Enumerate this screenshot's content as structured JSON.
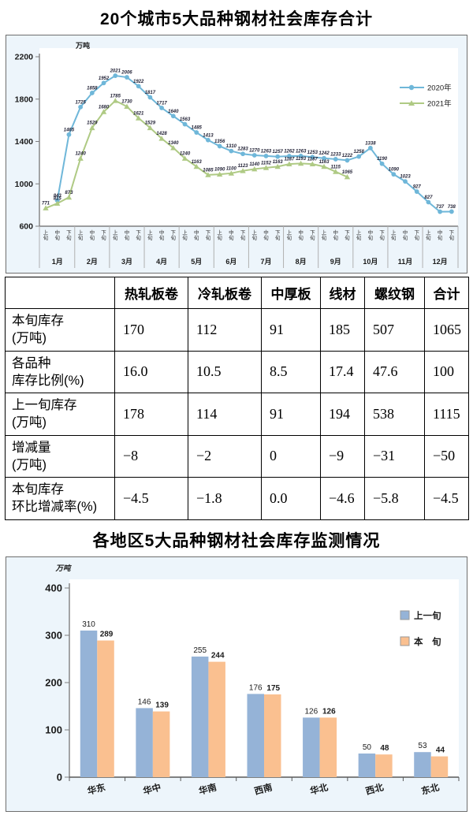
{
  "accent_colors": {
    "line_2020": "#6fb7d9",
    "line_2021": "#afca84",
    "bar_prev": "#95b3d7",
    "bar_curr": "#fac090",
    "chart_bg": "#edf5fb",
    "plot_bg": "#ffffff"
  },
  "chart_data": [
    {
      "type": "line",
      "title": "20个城市5大品种钢材社会库存合计",
      "unit": "万吨",
      "ylim": [
        600,
        2200
      ],
      "y_ticks": [
        600,
        1000,
        1400,
        1800,
        2200
      ],
      "months": [
        "1月",
        "2月",
        "3月",
        "4月",
        "5月",
        "6月",
        "7月",
        "8月",
        "9月",
        "10月",
        "11月",
        "12月"
      ],
      "periods": [
        "上旬",
        "中旬",
        "下旬"
      ],
      "grid": false,
      "legend_position": "right-inside",
      "series": [
        {
          "name": "2020年",
          "marker": "circle",
          "color": "#6fb7d9",
          "values": [
            null,
            843,
            1465,
            1725,
            1858,
            1952,
            2021,
            2006,
            1922,
            1817,
            1717,
            1640,
            1563,
            1485,
            1413,
            1356,
            1310,
            1283,
            1270,
            1263,
            1257,
            1262,
            1263,
            1253,
            1242,
            1233,
            1222,
            1258,
            1338,
            1190,
            1090,
            1023,
            927,
            827,
            737,
            738
          ]
        },
        {
          "name": "2021年",
          "marker": "triangle",
          "color": "#afca84",
          "values": [
            771,
            815,
            873,
            1240,
            1529,
            1680,
            1785,
            1730,
            1621,
            1529,
            1428,
            1340,
            1240,
            1163,
            1085,
            1090,
            1100,
            1123,
            1140,
            1152,
            1163,
            1187,
            1193,
            1187,
            1163,
            1115,
            1065,
            null,
            null,
            null,
            null,
            null,
            null,
            null,
            null,
            null
          ]
        }
      ]
    },
    {
      "type": "table",
      "col_headers": [
        "",
        "热轧板卷",
        "冷轧板卷",
        "中厚板",
        "线材",
        "螺纹钢",
        "合计"
      ],
      "rows": [
        {
          "label": "本旬库存\n(万吨)",
          "values": [
            "170",
            "112",
            "91",
            "185",
            "507",
            "1065"
          ]
        },
        {
          "label": "各品种\n库存比例(%)",
          "values": [
            "16.0",
            "10.5",
            "8.5",
            "17.4",
            "47.6",
            "100"
          ]
        },
        {
          "label": "上一旬库存\n(万吨)",
          "values": [
            "178",
            "114",
            "91",
            "194",
            "538",
            "1115"
          ]
        },
        {
          "label": "增减量\n(万吨)",
          "values": [
            "−8",
            "−2",
            "0",
            "−9",
            "−31",
            "−50"
          ]
        },
        {
          "label": "本旬库存\n环比增减率(%)",
          "values": [
            "−4.5",
            "−1.8",
            "0.0",
            "−4.6",
            "−5.8",
            "−4.5"
          ]
        }
      ]
    },
    {
      "type": "bar",
      "title": "各地区5大品种钢材社会库存监测情况",
      "unit": "万吨",
      "ylim": [
        0,
        400
      ],
      "y_ticks": [
        0,
        100,
        200,
        300,
        400
      ],
      "categories": [
        "华东",
        "华中",
        "华南",
        "西南",
        "华北",
        "西北",
        "东北"
      ],
      "grid": false,
      "legend_position": "right-inside",
      "series": [
        {
          "name": "上一旬",
          "color": "#95b3d7",
          "values": [
            310,
            146,
            255,
            176,
            126,
            50,
            53
          ]
        },
        {
          "name": "本　旬",
          "color": "#fac090",
          "values": [
            289,
            139,
            244,
            175,
            126,
            48,
            44
          ]
        }
      ]
    }
  ]
}
